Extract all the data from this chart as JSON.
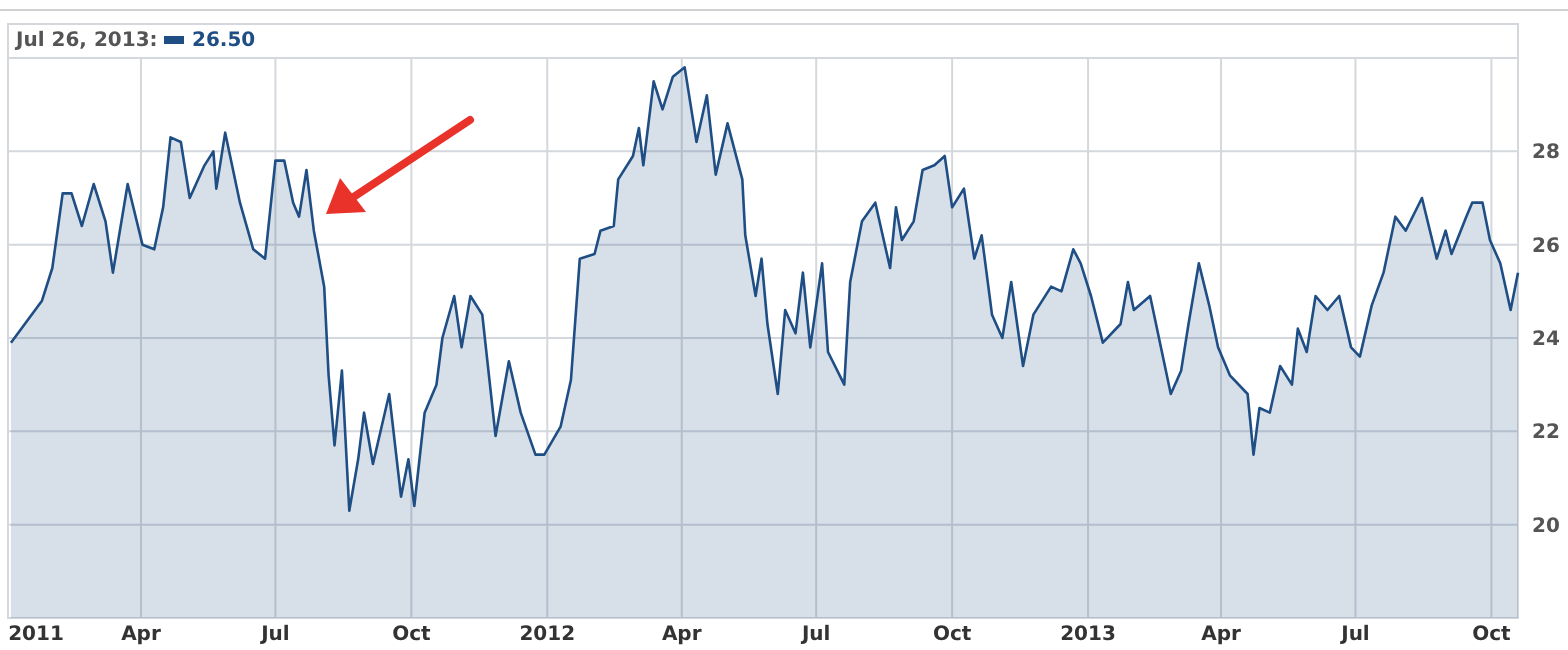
{
  "chart_data": {
    "type": "area",
    "annotations": [
      "Jul 26, 2013:",
      "26.50"
    ],
    "xlim": [
      "2011-01-01",
      "2013-10-19"
    ],
    "xticks": [
      {
        "value": "2011-01-01",
        "label": "2011"
      },
      {
        "value": "2011-04-01",
        "label": "Apr"
      },
      {
        "value": "2011-07-01",
        "label": "Jul"
      },
      {
        "value": "2011-10-01",
        "label": "Oct"
      },
      {
        "value": "2012-01-01",
        "label": "2012"
      },
      {
        "value": "2012-04-01",
        "label": "Apr"
      },
      {
        "value": "2012-07-01",
        "label": "Jul"
      },
      {
        "value": "2012-10-01",
        "label": "Oct"
      },
      {
        "value": "2013-01-01",
        "label": "2013"
      },
      {
        "value": "2013-04-01",
        "label": "Apr"
      },
      {
        "value": "2013-07-01",
        "label": "Jul"
      },
      {
        "value": "2013-10-01",
        "label": "Oct"
      }
    ],
    "ylim": [
      18,
      30
    ],
    "yticks": [
      20,
      22,
      24,
      26,
      28
    ],
    "grid": true,
    "series": [
      {
        "color": "#1f4e85",
        "x": [
          "2011-01-03",
          "2011-01-24",
          "2011-01-31",
          "2011-02-07",
          "2011-02-13",
          "2011-02-20",
          "2011-02-28",
          "2011-03-08",
          "2011-03-13",
          "2011-03-23",
          "2011-04-02",
          "2011-04-10",
          "2011-04-16",
          "2011-04-21",
          "2011-04-28",
          "2011-05-04",
          "2011-05-14",
          "2011-05-20",
          "2011-05-22",
          "2011-05-28",
          "2011-06-07",
          "2011-06-16",
          "2011-06-24",
          "2011-07-01",
          "2011-07-07",
          "2011-07-13",
          "2011-07-17",
          "2011-07-22",
          "2011-07-27",
          "2011-08-03",
          "2011-08-06",
          "2011-08-10",
          "2011-08-15",
          "2011-08-20",
          "2011-08-26",
          "2011-08-30",
          "2011-09-05",
          "2011-09-16",
          "2011-09-24",
          "2011-09-29",
          "2011-10-03",
          "2011-10-10",
          "2011-10-18",
          "2011-10-22",
          "2011-10-30",
          "2011-11-04",
          "2011-11-10",
          "2011-11-18",
          "2011-11-27",
          "2011-12-06",
          "2011-12-14",
          "2011-12-24",
          "2011-12-30",
          "2012-01-10",
          "2012-01-17",
          "2012-01-23",
          "2012-02-02",
          "2012-02-06",
          "2012-02-15",
          "2012-02-18",
          "2012-02-28",
          "2012-03-03",
          "2012-03-06",
          "2012-03-13",
          "2012-03-19",
          "2012-03-26",
          "2012-04-03",
          "2012-04-11",
          "2012-04-18",
          "2012-04-24",
          "2012-05-02",
          "2012-05-12",
          "2012-05-14",
          "2012-05-21",
          "2012-05-25",
          "2012-05-29",
          "2012-06-05",
          "2012-06-10",
          "2012-06-17",
          "2012-06-22",
          "2012-06-27",
          "2012-07-05",
          "2012-07-09",
          "2012-07-20",
          "2012-07-24",
          "2012-08-01",
          "2012-08-10",
          "2012-08-20",
          "2012-08-24",
          "2012-08-28",
          "2012-09-05",
          "2012-09-11",
          "2012-09-19",
          "2012-09-26",
          "2012-10-01",
          "2012-10-09",
          "2012-10-16",
          "2012-10-21",
          "2012-10-28",
          "2012-11-04",
          "2012-11-10",
          "2012-11-14",
          "2012-11-18",
          "2012-11-25",
          "2012-12-07",
          "2012-12-14",
          "2012-12-22",
          "2012-12-27",
          "2013-01-03",
          "2013-01-11",
          "2013-01-23",
          "2013-01-28",
          "2013-02-01",
          "2013-02-12",
          "2013-02-22",
          "2013-02-26",
          "2013-03-05",
          "2013-03-10",
          "2013-03-17",
          "2013-03-24",
          "2013-03-30",
          "2013-04-07",
          "2013-04-19",
          "2013-04-23",
          "2013-04-27",
          "2013-05-04",
          "2013-05-11",
          "2013-05-19",
          "2013-05-23",
          "2013-05-29",
          "2013-06-04",
          "2013-06-12",
          "2013-06-20",
          "2013-06-28",
          "2013-07-04",
          "2013-07-12",
          "2013-07-20",
          "2013-07-28",
          "2013-08-04",
          "2013-08-15",
          "2013-08-25",
          "2013-08-31",
          "2013-09-04",
          "2013-09-14",
          "2013-09-18",
          "2013-09-25",
          "2013-09-30",
          "2013-10-07",
          "2013-10-14",
          "2013-10-19"
        ],
        "values": [
          23.9,
          24.8,
          25.5,
          27.1,
          27.1,
          26.4,
          27.3,
          26.5,
          25.4,
          27.3,
          26.0,
          25.9,
          26.8,
          28.3,
          28.2,
          27.0,
          27.7,
          28.0,
          27.2,
          28.4,
          26.9,
          25.9,
          25.7,
          27.8,
          27.8,
          26.9,
          26.6,
          27.6,
          26.3,
          25.1,
          23.2,
          21.7,
          23.3,
          20.3,
          21.4,
          22.4,
          21.3,
          22.8,
          20.6,
          21.4,
          20.4,
          22.4,
          23.0,
          24.0,
          24.9,
          23.8,
          24.9,
          24.5,
          21.9,
          23.5,
          22.4,
          21.5,
          21.5,
          22.1,
          23.1,
          25.7,
          25.8,
          26.3,
          26.4,
          27.4,
          27.9,
          28.5,
          27.7,
          29.5,
          28.9,
          29.6,
          29.8,
          28.2,
          29.2,
          27.5,
          28.6,
          27.4,
          26.2,
          24.9,
          25.7,
          24.3,
          22.8,
          24.6,
          24.1,
          25.4,
          23.8,
          25.6,
          23.7,
          23.0,
          25.2,
          26.5,
          26.9,
          25.5,
          26.8,
          26.1,
          26.5,
          27.6,
          27.7,
          27.9,
          26.8,
          27.2,
          25.7,
          26.2,
          24.5,
          24.0,
          25.2,
          24.3,
          23.4,
          24.5,
          25.1,
          25.0,
          25.9,
          25.6,
          24.9,
          23.9,
          24.3,
          25.2,
          24.6,
          24.9,
          23.4,
          22.8,
          23.3,
          24.3,
          25.6,
          24.7,
          23.8,
          23.2,
          22.8,
          21.5,
          22.5,
          22.4,
          23.4,
          23.0,
          24.2,
          23.7,
          24.9,
          24.6,
          24.9,
          23.8,
          23.6,
          24.7,
          25.4,
          26.6,
          26.3,
          27.0,
          25.7,
          26.3,
          25.8,
          26.6,
          26.9,
          26.9,
          26.1,
          25.6,
          24.6,
          25.4
        ]
      }
    ]
  }
}
